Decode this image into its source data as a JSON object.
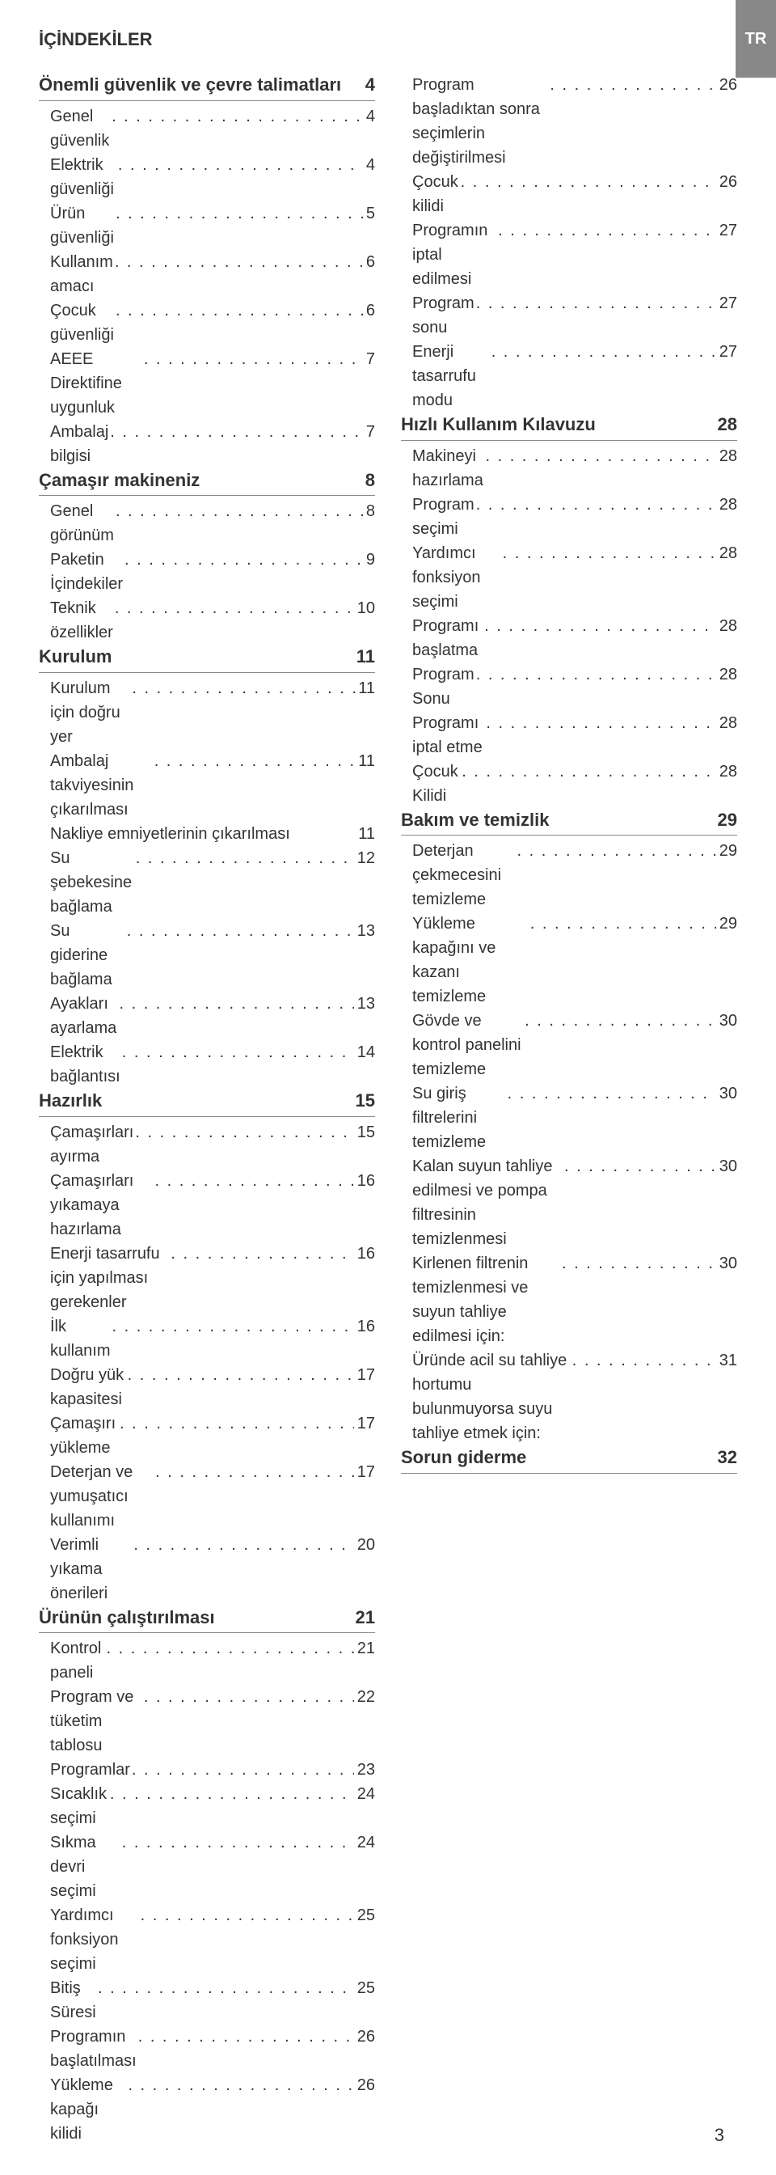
{
  "heading": "İÇİNDEKİLER",
  "side_tab": "TR",
  "page_number": "3",
  "colors": {
    "background": "#ffffff",
    "text": "#333333",
    "tab_bg": "#888888",
    "tab_text": "#ffffff",
    "divider": "#888888"
  },
  "typography": {
    "heading_fontsize": 22,
    "section_fontsize": 22,
    "entry_fontsize": 20,
    "font_family": "Arial"
  },
  "left_column": [
    {
      "type": "section",
      "title": "Önemli güvenlik ve çevre talimatları",
      "page": "4"
    },
    {
      "type": "entry",
      "label": "Genel güvenlik",
      "page": "4"
    },
    {
      "type": "entry",
      "label": "Elektrik güvenliği",
      "page": "4"
    },
    {
      "type": "entry",
      "label": "Ürün güvenliği",
      "page": "5"
    },
    {
      "type": "entry",
      "label": "Kullanım amacı",
      "page": "6"
    },
    {
      "type": "entry",
      "label": "Çocuk güvenliği",
      "page": "6"
    },
    {
      "type": "entry",
      "label": "AEEE Direktifine uygunluk",
      "page": "7"
    },
    {
      "type": "entry",
      "label": "Ambalaj bilgisi",
      "page": "7"
    },
    {
      "type": "section",
      "title": "Çamaşır makineniz",
      "page": "8"
    },
    {
      "type": "entry",
      "label": "Genel görünüm",
      "page": "8"
    },
    {
      "type": "entry",
      "label": "Paketin İçindekiler",
      "page": "9"
    },
    {
      "type": "entry",
      "label": "Teknik özellikler",
      "page": "10"
    },
    {
      "type": "section",
      "title": "Kurulum",
      "page": "11"
    },
    {
      "type": "entry",
      "label": "Kurulum için doğru yer",
      "page": "11"
    },
    {
      "type": "entry",
      "label": "Ambalaj takviyesinin çıkarılması",
      "page": "11"
    },
    {
      "type": "entry_nodots",
      "label": "Nakliye emniyetlerinin çıkarılması",
      "page": "11"
    },
    {
      "type": "entry",
      "label": "Su şebekesine bağlama",
      "page": "12"
    },
    {
      "type": "entry",
      "label": "Su giderine bağlama",
      "page": "13"
    },
    {
      "type": "entry",
      "label": "Ayakları ayarlama",
      "page": "13"
    },
    {
      "type": "entry",
      "label": "Elektrik bağlantısı",
      "page": "14"
    },
    {
      "type": "section",
      "title": "Hazırlık",
      "page": "15"
    },
    {
      "type": "entry",
      "label": "Çamaşırları ayırma",
      "page": "15"
    },
    {
      "type": "entry",
      "label": "Çamaşırları yıkamaya hazırlama",
      "page": "16"
    },
    {
      "type": "entry",
      "label": "Enerji tasarrufu için yapılması gerekenler",
      "page": "16"
    },
    {
      "type": "entry",
      "label": "İlk kullanım",
      "page": "16"
    },
    {
      "type": "entry",
      "label": "Doğru yük kapasitesi",
      "page": "17"
    },
    {
      "type": "entry",
      "label": "Çamaşırı yükleme",
      "page": "17"
    },
    {
      "type": "entry",
      "label": "Deterjan ve yumuşatıcı kullanımı",
      "page": "17"
    },
    {
      "type": "entry",
      "label": "Verimli yıkama önerileri",
      "page": "20"
    },
    {
      "type": "section",
      "title": "Ürünün çalıştırılması",
      "page": "21"
    },
    {
      "type": "entry",
      "label": "Kontrol paneli",
      "page": "21"
    },
    {
      "type": "entry",
      "label": "Program ve tüketim tablosu",
      "page": "22"
    },
    {
      "type": "entry",
      "label": "Programlar",
      "page": "23"
    },
    {
      "type": "entry",
      "label": "Sıcaklık seçimi",
      "page": "24"
    },
    {
      "type": "entry",
      "label": "Sıkma devri seçimi",
      "page": "24"
    },
    {
      "type": "entry",
      "label": "Yardımcı fonksiyon seçimi",
      "page": "25"
    },
    {
      "type": "entry",
      "label": "Bitiş Süresi",
      "page": "25"
    },
    {
      "type": "entry",
      "label": "Programın başlatılması",
      "page": "26"
    },
    {
      "type": "entry",
      "label": "Yükleme kapağı kilidi",
      "page": "26"
    }
  ],
  "right_column": [
    {
      "type": "entry",
      "label": "Program başladıktan sonra seçimlerin değiştirilmesi",
      "page": "26"
    },
    {
      "type": "entry",
      "label": "Çocuk kilidi",
      "page": "26"
    },
    {
      "type": "entry",
      "label": "Programın iptal edilmesi",
      "page": "27"
    },
    {
      "type": "entry",
      "label": "Program sonu",
      "page": "27"
    },
    {
      "type": "entry",
      "label": "Enerji tasarrufu modu",
      "page": "27"
    },
    {
      "type": "section",
      "title": "Hızlı Kullanım Kılavuzu",
      "page": "28"
    },
    {
      "type": "entry",
      "label": "Makineyi hazırlama",
      "page": "28"
    },
    {
      "type": "entry",
      "label": "Program seçimi",
      "page": "28"
    },
    {
      "type": "entry",
      "label": "Yardımcı fonksiyon seçimi",
      "page": "28"
    },
    {
      "type": "entry",
      "label": "Programı başlatma",
      "page": "28"
    },
    {
      "type": "entry",
      "label": "Program Sonu",
      "page": "28"
    },
    {
      "type": "entry",
      "label": "Programı iptal etme",
      "page": "28"
    },
    {
      "type": "entry",
      "label": "Çocuk Kilidi",
      "page": "28"
    },
    {
      "type": "section",
      "title": "Bakım ve temizlik",
      "page": "29"
    },
    {
      "type": "entry",
      "label": "Deterjan çekmecesini temizleme",
      "page": "29"
    },
    {
      "type": "entry",
      "label": "Yükleme kapağını ve kazanı temizleme",
      "page": "29"
    },
    {
      "type": "entry",
      "label": "Gövde ve kontrol panelini temizleme",
      "page": "30"
    },
    {
      "type": "entry",
      "label": "Su giriş filtrelerini temizleme",
      "page": "30"
    },
    {
      "type": "entry",
      "label": "Kalan suyun tahliye edilmesi ve pompa filtresinin temizlenmesi",
      "page": "30"
    },
    {
      "type": "entry",
      "label": "Kirlenen filtrenin temizlenmesi ve suyun tahliye edilmesi için:",
      "page": "30"
    },
    {
      "type": "entry",
      "label": "Üründe acil su tahliye hortumu bulunmuyorsa suyu tahliye etmek için:",
      "page": "31"
    },
    {
      "type": "section",
      "title": "Sorun giderme",
      "page": "32"
    }
  ]
}
